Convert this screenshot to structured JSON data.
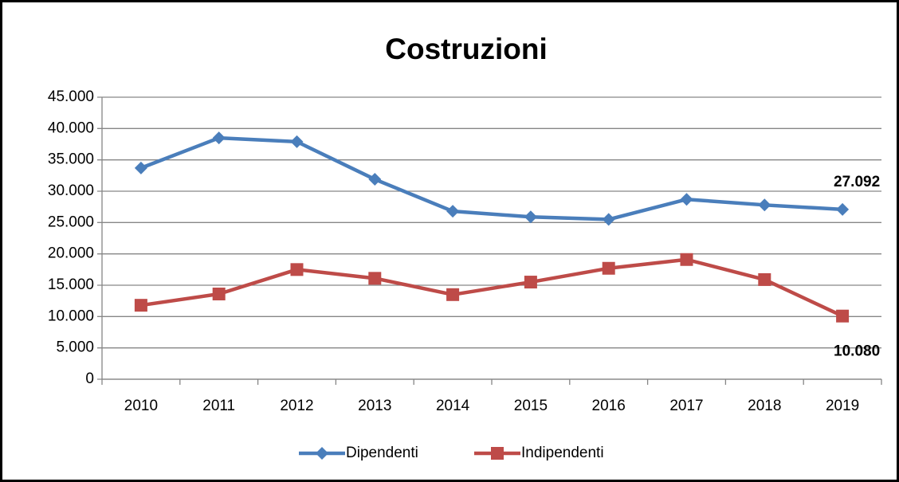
{
  "chart_data": {
    "type": "line",
    "title": "Costruzioni",
    "categories": [
      "2010",
      "2011",
      "2012",
      "2013",
      "2014",
      "2015",
      "2016",
      "2017",
      "2018",
      "2019"
    ],
    "series": [
      {
        "name": "Dipendenti",
        "color": "#4a7ebb",
        "marker": "diamond",
        "values": [
          33700,
          38500,
          37900,
          31900,
          26800,
          25900,
          25500,
          28700,
          27800,
          27092
        ],
        "value_labels": [
          null,
          null,
          null,
          null,
          null,
          null,
          null,
          null,
          null,
          "27.092"
        ]
      },
      {
        "name": "Indipendenti",
        "color": "#be4b48",
        "marker": "square",
        "values": [
          11800,
          13600,
          17500,
          16100,
          13500,
          15500,
          17700,
          19100,
          15900,
          10080
        ],
        "value_labels": [
          null,
          null,
          null,
          null,
          null,
          null,
          null,
          null,
          null,
          "10.080"
        ]
      }
    ],
    "ylim": [
      0,
      45000
    ],
    "yticks": [
      0,
      {
        "value": 5000,
        "label": "5.000"
      },
      {
        "value": 10000,
        "label": "10.000"
      },
      {
        "value": 15000,
        "label": "15.000"
      },
      {
        "value": 20000,
        "label": "20.000"
      },
      {
        "value": 25000,
        "label": "25.000"
      },
      {
        "value": 30000,
        "label": "30.000"
      },
      {
        "value": 35000,
        "label": "35.000"
      },
      {
        "value": 40000,
        "label": "40.000"
      },
      {
        "value": 45000,
        "label": "45.000"
      }
    ],
    "grid": true,
    "legend": "bottom"
  }
}
